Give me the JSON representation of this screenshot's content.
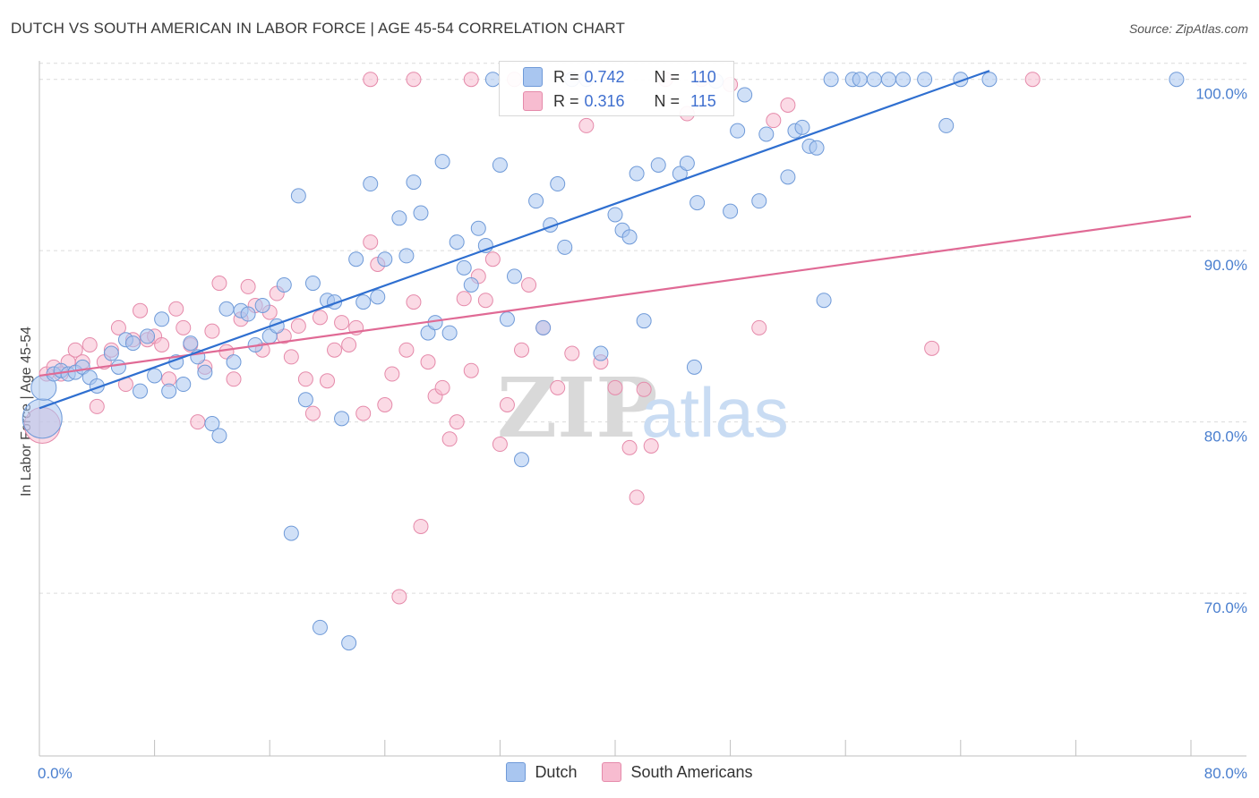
{
  "title": "DUTCH VS SOUTH AMERICAN IN LABOR FORCE | AGE 45-54 CORRELATION CHART",
  "source": "Source: ZipAtlas.com",
  "legend_top": [
    {
      "r_label": "R =",
      "r_value": "0.742",
      "n_label": "N =",
      "n_value": "110"
    },
    {
      "r_label": "R =",
      "r_value": "0.316",
      "n_label": "N =",
      "n_value": "115"
    }
  ],
  "colors": {
    "dutch_fill": "#a9c6f0",
    "dutch_stroke": "#6f9ad8",
    "dutch_line": "#2f6fd0",
    "sa_fill": "#f7bcd0",
    "sa_stroke": "#e58aaa",
    "sa_line": "#e06a95",
    "grid": "#dcdcdc",
    "tick_text": "#4a7fcf"
  },
  "chart_data": {
    "type": "scatter",
    "title": "DUTCH VS SOUTH AMERICAN IN LABOR FORCE | AGE 45-54 CORRELATION CHART",
    "xlabel": "",
    "ylabel": "In Labor Force | Age 45-54",
    "xlim": [
      0,
      80
    ],
    "ylim": [
      60.5,
      101.5
    ],
    "x_tick_labels": [
      "0.0%",
      "80.0%"
    ],
    "y_ticks": [
      70,
      80,
      90,
      100
    ],
    "y_tick_labels": [
      "70.0%",
      "80.0%",
      "90.0%",
      "100.0%"
    ],
    "grid": true,
    "watermark": {
      "text1": "ZIP",
      "text2": "atlas"
    },
    "series": [
      {
        "name": "Dutch",
        "trend": {
          "x": [
            0,
            66
          ],
          "y": [
            80.8,
            100.5
          ]
        },
        "points": [
          [
            0.2,
            80.2
          ],
          [
            0.3,
            82.0
          ],
          [
            1.0,
            82.8
          ],
          [
            1.5,
            83.0
          ],
          [
            2.0,
            82.8
          ],
          [
            2.5,
            82.9
          ],
          [
            3.0,
            83.2
          ],
          [
            3.5,
            82.6
          ],
          [
            4.0,
            82.1
          ],
          [
            5.0,
            84.0
          ],
          [
            5.5,
            83.2
          ],
          [
            6.0,
            84.8
          ],
          [
            6.5,
            84.6
          ],
          [
            7.0,
            81.8
          ],
          [
            7.5,
            85.0
          ],
          [
            8.0,
            82.7
          ],
          [
            8.5,
            86.0
          ],
          [
            9.0,
            81.8
          ],
          [
            9.5,
            83.5
          ],
          [
            10.0,
            82.2
          ],
          [
            10.5,
            84.6
          ],
          [
            11.0,
            83.8
          ],
          [
            11.5,
            82.9
          ],
          [
            12.0,
            79.9
          ],
          [
            12.5,
            79.2
          ],
          [
            13.0,
            86.6
          ],
          [
            13.5,
            83.5
          ],
          [
            14.0,
            86.5
          ],
          [
            14.5,
            86.3
          ],
          [
            15.0,
            84.5
          ],
          [
            15.5,
            86.8
          ],
          [
            16.0,
            85.0
          ],
          [
            16.5,
            85.6
          ],
          [
            17.0,
            88.0
          ],
          [
            17.5,
            73.5
          ],
          [
            18.0,
            93.2
          ],
          [
            18.5,
            81.3
          ],
          [
            19.0,
            88.1
          ],
          [
            19.5,
            68.0
          ],
          [
            20.0,
            87.1
          ],
          [
            20.5,
            87.0
          ],
          [
            21.0,
            80.2
          ],
          [
            21.5,
            67.1
          ],
          [
            22.0,
            89.5
          ],
          [
            22.5,
            87.0
          ],
          [
            23.0,
            93.9
          ],
          [
            23.5,
            87.3
          ],
          [
            24.0,
            89.5
          ],
          [
            25.0,
            91.9
          ],
          [
            25.5,
            89.7
          ],
          [
            26.0,
            94.0
          ],
          [
            26.5,
            92.2
          ],
          [
            27.0,
            85.2
          ],
          [
            27.5,
            85.8
          ],
          [
            28.0,
            95.2
          ],
          [
            28.5,
            85.2
          ],
          [
            29.0,
            90.5
          ],
          [
            29.5,
            89.0
          ],
          [
            30.0,
            88.0
          ],
          [
            30.5,
            91.3
          ],
          [
            31.0,
            90.3
          ],
          [
            31.5,
            100.0
          ],
          [
            32.0,
            95.0
          ],
          [
            32.5,
            86.0
          ],
          [
            33.0,
            88.5
          ],
          [
            33.5,
            77.8
          ],
          [
            34.5,
            92.9
          ],
          [
            35.0,
            85.5
          ],
          [
            35.5,
            91.5
          ],
          [
            36.0,
            93.9
          ],
          [
            36.5,
            90.2
          ],
          [
            37.0,
            100.0
          ],
          [
            38.0,
            100.0
          ],
          [
            39.0,
            84.0
          ],
          [
            40.0,
            92.1
          ],
          [
            40.5,
            91.2
          ],
          [
            41.0,
            90.8
          ],
          [
            41.5,
            94.5
          ],
          [
            42.0,
            85.9
          ],
          [
            43.0,
            95.0
          ],
          [
            44.5,
            94.5
          ],
          [
            45.0,
            95.1
          ],
          [
            45.5,
            83.2
          ],
          [
            45.7,
            92.8
          ],
          [
            47.0,
            99.9
          ],
          [
            48.0,
            92.3
          ],
          [
            48.5,
            97.0
          ],
          [
            49.0,
            99.1
          ],
          [
            50.0,
            92.9
          ],
          [
            50.5,
            96.8
          ],
          [
            52.0,
            94.3
          ],
          [
            52.5,
            97.0
          ],
          [
            53.0,
            97.2
          ],
          [
            53.5,
            96.1
          ],
          [
            54.0,
            96.0
          ],
          [
            54.5,
            87.1
          ],
          [
            55.0,
            100.0
          ],
          [
            56.5,
            100.0
          ],
          [
            57.0,
            100.0
          ],
          [
            58.0,
            100.0
          ],
          [
            59.0,
            100.0
          ],
          [
            60.0,
            100.0
          ],
          [
            61.5,
            100.0
          ],
          [
            63.0,
            97.3
          ],
          [
            64.0,
            100.0
          ],
          [
            66.0,
            100.0
          ],
          [
            79.0,
            100.0
          ]
        ]
      },
      {
        "name": "South Americans",
        "trend": {
          "x": [
            0,
            80
          ],
          "y": [
            82.7,
            92.0
          ]
        },
        "points": [
          [
            0.2,
            79.8
          ],
          [
            0.5,
            82.8
          ],
          [
            1.0,
            83.2
          ],
          [
            1.5,
            82.8
          ],
          [
            2.0,
            83.5
          ],
          [
            2.5,
            84.2
          ],
          [
            3.0,
            83.5
          ],
          [
            3.5,
            84.5
          ],
          [
            4.0,
            80.9
          ],
          [
            4.5,
            83.5
          ],
          [
            5.0,
            84.2
          ],
          [
            5.5,
            85.5
          ],
          [
            6.0,
            82.2
          ],
          [
            6.5,
            84.8
          ],
          [
            7.0,
            86.5
          ],
          [
            7.5,
            84.8
          ],
          [
            8.0,
            85.0
          ],
          [
            8.5,
            84.5
          ],
          [
            9.0,
            82.5
          ],
          [
            9.5,
            86.6
          ],
          [
            10.0,
            85.5
          ],
          [
            10.5,
            84.5
          ],
          [
            11.0,
            80.0
          ],
          [
            11.5,
            83.2
          ],
          [
            12.0,
            85.3
          ],
          [
            12.5,
            88.1
          ],
          [
            13.0,
            84.1
          ],
          [
            13.5,
            82.5
          ],
          [
            14.0,
            86.0
          ],
          [
            14.5,
            87.9
          ],
          [
            15.0,
            86.8
          ],
          [
            15.5,
            84.2
          ],
          [
            16.0,
            86.4
          ],
          [
            16.5,
            87.5
          ],
          [
            17.0,
            85.0
          ],
          [
            17.5,
            83.8
          ],
          [
            18.0,
            85.6
          ],
          [
            18.5,
            82.5
          ],
          [
            19.0,
            80.5
          ],
          [
            19.5,
            86.1
          ],
          [
            20.0,
            82.4
          ],
          [
            20.5,
            84.2
          ],
          [
            21.0,
            85.8
          ],
          [
            21.5,
            84.5
          ],
          [
            22.0,
            85.5
          ],
          [
            22.5,
            80.5
          ],
          [
            23.0,
            90.5
          ],
          [
            23.5,
            89.2
          ],
          [
            24.0,
            81.0
          ],
          [
            24.5,
            82.8
          ],
          [
            25.0,
            69.8
          ],
          [
            25.5,
            84.2
          ],
          [
            26.0,
            87.0
          ],
          [
            26.5,
            73.9
          ],
          [
            27.0,
            83.5
          ],
          [
            27.5,
            81.5
          ],
          [
            28.0,
            82.0
          ],
          [
            28.5,
            79.0
          ],
          [
            29.0,
            80.0
          ],
          [
            29.5,
            87.2
          ],
          [
            30.0,
            83.0
          ],
          [
            30.5,
            88.5
          ],
          [
            31.0,
            87.1
          ],
          [
            31.5,
            89.5
          ],
          [
            32.0,
            78.7
          ],
          [
            32.5,
            81.0
          ],
          [
            33.0,
            100.0
          ],
          [
            33.5,
            84.2
          ],
          [
            34.0,
            88.0
          ],
          [
            35.0,
            85.5
          ],
          [
            36.0,
            82.0
          ],
          [
            37.0,
            84.0
          ],
          [
            38.0,
            97.3
          ],
          [
            39.0,
            83.5
          ],
          [
            40.0,
            82.0
          ],
          [
            41.0,
            78.5
          ],
          [
            41.5,
            75.6
          ],
          [
            42.0,
            81.9
          ],
          [
            42.5,
            78.6
          ],
          [
            43.5,
            100.0
          ],
          [
            45.0,
            98.0
          ],
          [
            46.0,
            100.0
          ],
          [
            48.0,
            99.7
          ],
          [
            50.0,
            85.5
          ],
          [
            51.0,
            97.6
          ],
          [
            52.0,
            98.5
          ],
          [
            62.0,
            84.3
          ],
          [
            69.0,
            100.0
          ],
          [
            23.0,
            100.0
          ],
          [
            26.0,
            100.0
          ],
          [
            30.0,
            100.0
          ]
        ]
      }
    ]
  },
  "legend_bottom": [
    "Dutch",
    "South Americans"
  ]
}
